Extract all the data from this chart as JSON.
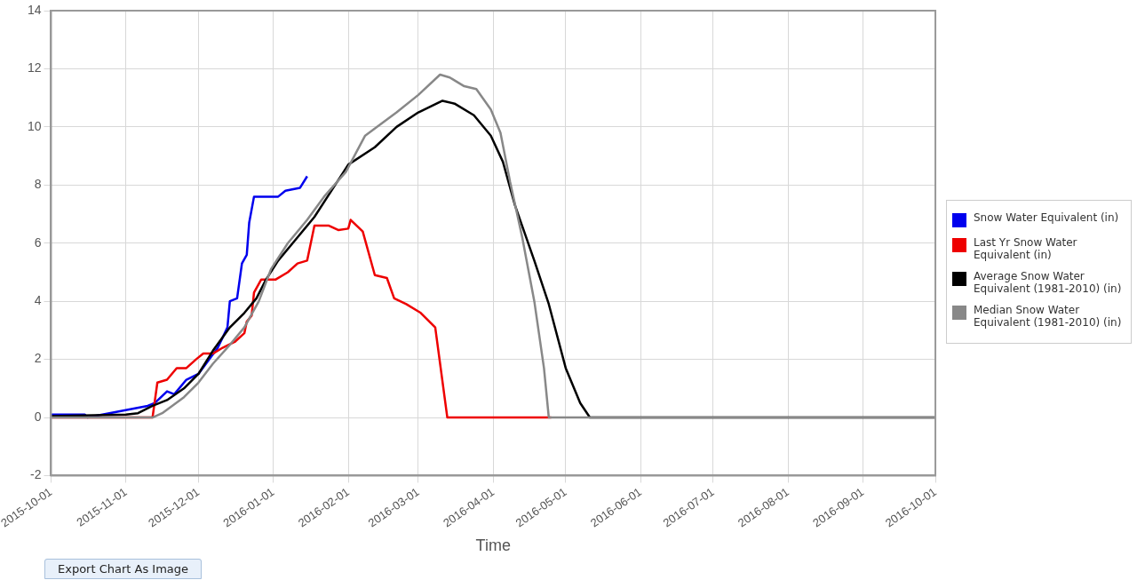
{
  "chart_data": {
    "type": "line",
    "xlabel": "Time",
    "xlim": [
      "2015-10-01",
      "2016-10-01"
    ],
    "xticks": [
      "2015-10-01",
      "2015-11-01",
      "2015-12-01",
      "2016-01-01",
      "2016-02-01",
      "2016-03-01",
      "2016-04-01",
      "2016-05-01",
      "2016-06-01",
      "2016-07-01",
      "2016-08-01",
      "2016-09-01",
      "2016-10-01"
    ],
    "ylim": [
      -2,
      14
    ],
    "yticks": [
      -2,
      0,
      2,
      4,
      6,
      8,
      10,
      12,
      14
    ],
    "grid": true,
    "legend": "right",
    "marker": "none",
    "line_style": "solid",
    "annotations": [
      "Export Chart As Image"
    ],
    "series": [
      {
        "name": "Snow Water Equivalent (in)",
        "color": "#0000ee",
        "x": [
          "2015-10-01",
          "2015-10-15",
          "2015-10-16",
          "2015-11-10",
          "2015-11-13",
          "2015-11-18",
          "2015-11-21",
          "2015-11-26",
          "2015-12-01",
          "2015-12-09",
          "2015-12-13",
          "2015-12-14",
          "2015-12-17",
          "2015-12-19",
          "2015-12-21",
          "2015-12-22",
          "2015-12-24",
          "2016-01-03",
          "2016-01-06",
          "2016-01-12",
          "2016-01-15"
        ],
        "values": [
          0.1,
          0.1,
          0,
          0.4,
          0.5,
          0.9,
          0.8,
          1.3,
          1.5,
          2.4,
          3.1,
          4.0,
          4.1,
          5.3,
          5.6,
          6.7,
          7.6,
          7.6,
          7.8,
          7.9,
          8.3
        ]
      },
      {
        "name": "Last Yr Snow Water Equivalent (in)",
        "color": "#ee0000",
        "x": [
          "2015-10-01",
          "2015-11-12",
          "2015-11-13",
          "2015-11-14",
          "2015-11-18",
          "2015-11-22",
          "2015-11-26",
          "2015-11-30",
          "2015-12-03",
          "2015-12-07",
          "2015-12-11",
          "2015-12-16",
          "2015-12-20",
          "2015-12-21",
          "2015-12-23",
          "2015-12-24",
          "2015-12-27",
          "2016-01-02",
          "2016-01-07",
          "2016-01-11",
          "2016-01-15",
          "2016-01-18",
          "2016-01-24",
          "2016-01-28",
          "2016-02-01",
          "2016-02-02",
          "2016-02-07",
          "2016-02-12",
          "2016-02-17",
          "2016-02-20",
          "2016-02-25",
          "2016-03-02",
          "2016-03-08",
          "2016-03-13",
          "2016-04-25"
        ],
        "values": [
          0,
          0,
          0.6,
          1.2,
          1.3,
          1.7,
          1.7,
          2.0,
          2.2,
          2.2,
          2.4,
          2.6,
          2.9,
          3.3,
          3.5,
          4.3,
          4.75,
          4.75,
          5.0,
          5.3,
          5.4,
          6.6,
          6.6,
          6.45,
          6.5,
          6.8,
          6.4,
          4.9,
          4.8,
          4.1,
          3.9,
          3.6,
          3.1,
          0,
          0
        ]
      },
      {
        "name": "Average Snow Water Equivalent (1981-2010) (in)",
        "color": "#000000",
        "x": [
          "2015-10-01",
          "2015-11-01",
          "2015-11-06",
          "2015-11-12",
          "2015-11-18",
          "2015-11-25",
          "2015-12-01",
          "2015-12-07",
          "2015-12-14",
          "2015-12-20",
          "2015-12-25",
          "2015-12-29",
          "2016-01-03",
          "2016-01-10",
          "2016-01-18",
          "2016-01-25",
          "2016-02-01",
          "2016-02-12",
          "2016-02-21",
          "2016-03-01",
          "2016-03-11",
          "2016-03-16",
          "2016-03-24",
          "2016-03-31",
          "2016-04-05",
          "2016-04-10",
          "2016-04-18",
          "2016-04-24",
          "2016-05-01",
          "2016-05-07",
          "2016-05-11",
          "2016-10-01"
        ],
        "values": [
          0.05,
          0.1,
          0.15,
          0.4,
          0.6,
          1.0,
          1.5,
          2.3,
          3.1,
          3.6,
          4.1,
          4.75,
          5.4,
          6.1,
          6.9,
          7.8,
          8.7,
          9.3,
          10.0,
          10.5,
          10.9,
          10.8,
          10.4,
          9.7,
          8.8,
          7.3,
          5.4,
          3.9,
          1.7,
          0.5,
          0,
          0
        ]
      },
      {
        "name": "Median Snow Water Equivalent (1981-2010) (in)",
        "color": "#888888",
        "x": [
          "2015-10-01",
          "2015-11-12",
          "2015-11-16",
          "2015-11-25",
          "2015-12-01",
          "2015-12-07",
          "2015-12-14",
          "2015-12-20",
          "2015-12-26",
          "2015-12-31",
          "2016-01-07",
          "2016-01-15",
          "2016-01-22",
          "2016-01-31",
          "2016-02-08",
          "2016-02-21",
          "2016-03-01",
          "2016-03-10",
          "2016-03-14",
          "2016-03-20",
          "2016-03-25",
          "2016-03-31",
          "2016-04-04",
          "2016-04-08",
          "2016-04-13",
          "2016-04-18",
          "2016-04-22",
          "2016-04-24",
          "2016-10-01"
        ],
        "values": [
          0,
          0,
          0.15,
          0.7,
          1.2,
          1.85,
          2.5,
          3.1,
          4.0,
          5.1,
          6.0,
          6.8,
          7.6,
          8.45,
          9.7,
          10.5,
          11.1,
          11.8,
          11.7,
          11.4,
          11.3,
          10.6,
          9.8,
          8.1,
          6.2,
          4.0,
          1.7,
          0,
          0
        ]
      }
    ]
  }
}
